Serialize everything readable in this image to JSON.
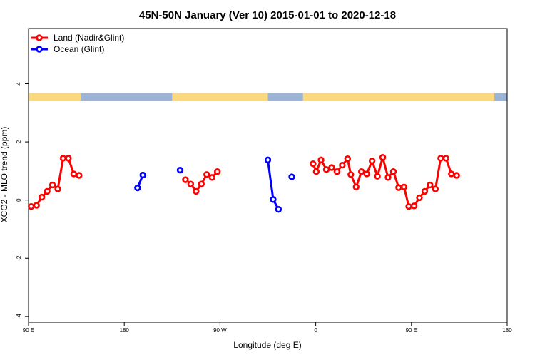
{
  "chart_data": {
    "type": "line",
    "title": "45N-50N January (Ver 10)   2015-01-01 to 2020-12-18",
    "xlabel": "Longitude (deg E)",
    "ylabel": "XCO2 - MLO trend (ppm)",
    "xlim": [
      90,
      540
    ],
    "ylim": [
      -4.2,
      5.9
    ],
    "x_ticks": [
      {
        "value": 90,
        "label": "90 E"
      },
      {
        "value": 180,
        "label": "180"
      },
      {
        "value": 270,
        "label": "90 W"
      },
      {
        "value": 360,
        "label": "0"
      },
      {
        "value": 450,
        "label": "90 E"
      },
      {
        "value": 540,
        "label": "180"
      }
    ],
    "y_ticks": [
      {
        "value": -4,
        "label": "-4"
      },
      {
        "value": -2,
        "label": "-2"
      },
      {
        "value": 0,
        "label": "0"
      },
      {
        "value": 2,
        "label": "2"
      },
      {
        "value": 4,
        "label": "4"
      }
    ],
    "legend": {
      "position": "top-left"
    },
    "series": [
      {
        "name": "Land (Nadir&Glint)",
        "color": "#ff0000",
        "segments": [
          [
            [
              92.5,
              -0.22
            ],
            [
              97.5,
              -0.18
            ],
            [
              102.5,
              0.1
            ],
            [
              107.5,
              0.3
            ],
            [
              112.5,
              0.52
            ],
            [
              117.5,
              0.38
            ],
            [
              122.5,
              1.44
            ],
            [
              127.5,
              1.44
            ],
            [
              132.5,
              0.9
            ],
            [
              137.5,
              0.85
            ]
          ],
          [
            [
              237.5,
              0.7
            ],
            [
              242.5,
              0.55
            ],
            [
              247.5,
              0.3
            ],
            [
              252.5,
              0.55
            ],
            [
              257.5,
              0.88
            ],
            [
              262.5,
              0.78
            ],
            [
              267.5,
              0.98
            ]
          ],
          [
            [
              357.5,
              1.25
            ],
            [
              360.5,
              0.98
            ],
            [
              365,
              1.38
            ],
            [
              370,
              1.05
            ],
            [
              375,
              1.12
            ],
            [
              380,
              0.98
            ],
            [
              385,
              1.2
            ],
            [
              390,
              1.42
            ],
            [
              393,
              0.88
            ],
            [
              398,
              0.45
            ],
            [
              403,
              0.98
            ],
            [
              408,
              0.9
            ],
            [
              413,
              1.35
            ],
            [
              418,
              0.82
            ],
            [
              423,
              1.47
            ],
            [
              428,
              0.78
            ],
            [
              433,
              0.98
            ],
            [
              438,
              0.43
            ],
            [
              443,
              0.45
            ],
            [
              447.5,
              -0.22
            ],
            [
              452.5,
              -0.2
            ],
            [
              457.5,
              0.08
            ],
            [
              462.5,
              0.3
            ],
            [
              467.5,
              0.52
            ],
            [
              472.5,
              0.38
            ],
            [
              477.5,
              1.44
            ],
            [
              482.5,
              1.44
            ],
            [
              487.5,
              0.9
            ],
            [
              492.5,
              0.85
            ]
          ]
        ]
      },
      {
        "name": "Ocean (Glint)",
        "color": "#0000ff",
        "segments": [
          [
            [
              192.5,
              0.42
            ],
            [
              197.5,
              0.86
            ]
          ],
          [
            [
              232.5,
              1.03
            ]
          ],
          [
            [
              315,
              1.38
            ],
            [
              320,
              0.02
            ],
            [
              325,
              -0.32
            ]
          ],
          [
            [
              337.5,
              0.8
            ]
          ]
        ]
      }
    ],
    "surface_strip": {
      "y_range": [
        3.42,
        3.68
      ],
      "land_color": "#fad97e",
      "ocean_color": "#9db3d6",
      "land_spans": [
        [
          90,
          139
        ],
        [
          225,
          315
        ],
        [
          348,
          528
        ]
      ]
    }
  }
}
